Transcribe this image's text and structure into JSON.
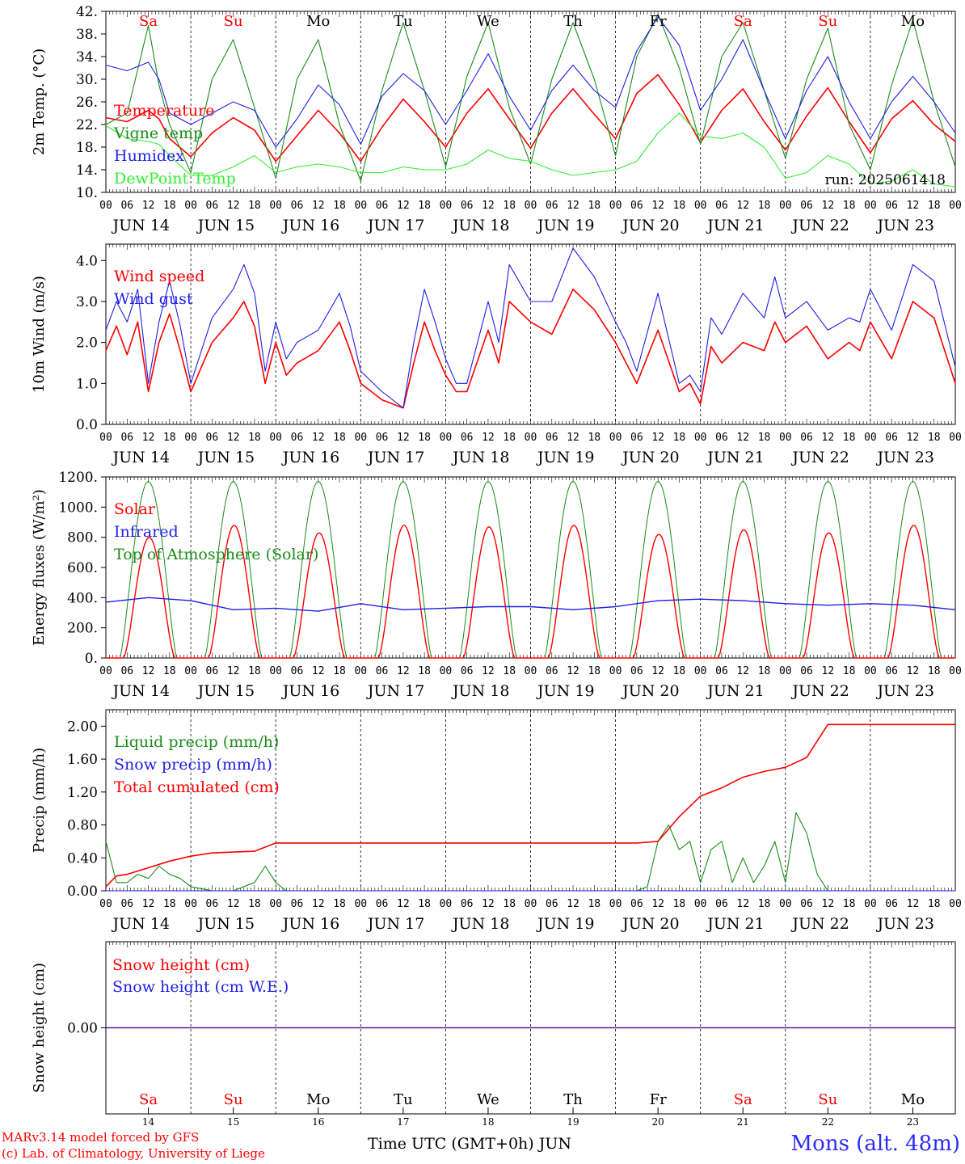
{
  "colors": {
    "red": "#ff0000",
    "green": "#1a8c1a",
    "blue": "#1e1ee6",
    "lightgreen": "#33ee33",
    "black": "#000000"
  },
  "days": [
    {
      "abbr": "Sa",
      "date": "JUN 14",
      "num": "14",
      "weekend": true
    },
    {
      "abbr": "Su",
      "date": "JUN 15",
      "num": "15",
      "weekend": true
    },
    {
      "abbr": "Mo",
      "date": "JUN 16",
      "num": "16",
      "weekend": false
    },
    {
      "abbr": "Tu",
      "date": "JUN 17",
      "num": "17",
      "weekend": false
    },
    {
      "abbr": "We",
      "date": "JUN 18",
      "num": "18",
      "weekend": false
    },
    {
      "abbr": "Th",
      "date": "JUN 19",
      "num": "19",
      "weekend": false
    },
    {
      "abbr": "Fr",
      "date": "JUN 20",
      "num": "20",
      "weekend": false
    },
    {
      "abbr": "Sa",
      "date": "JUN 21",
      "num": "21",
      "weekend": true
    },
    {
      "abbr": "Su",
      "date": "JUN 22",
      "num": "22",
      "weekend": true
    },
    {
      "abbr": "Mo",
      "date": "JUN 23",
      "num": "23",
      "weekend": false
    }
  ],
  "hour_ticks": [
    "00",
    "06",
    "12",
    "18"
  ],
  "hour_ticks_end": "00",
  "footer": {
    "model": "MARv3.14 model forced by GFS",
    "copyright": "(c) Lab. of Climatology, University of Liege",
    "xlabel": "Time UTC (GMT+0h) JUN",
    "station": "Mons (alt. 48m)"
  },
  "chart_data": [
    {
      "type": "line",
      "ylabel": "2m Temp. (°C)",
      "ylim": [
        10,
        42
      ],
      "ytick_labels": [
        "10.",
        "14.",
        "18.",
        "22.",
        "26.",
        "30.",
        "34.",
        "38.",
        "42."
      ],
      "ytick_values": [
        10,
        14,
        18,
        22,
        26,
        30,
        34,
        38,
        42
      ],
      "annotation": "run: 2025061418",
      "x_hours": [
        0,
        6,
        12,
        15,
        18,
        24,
        30,
        36,
        42,
        48,
        54,
        60,
        66,
        72,
        78,
        84,
        90,
        96,
        102,
        108,
        114,
        120,
        126,
        132,
        138,
        144,
        150,
        156,
        162,
        168,
        174,
        180,
        186,
        192,
        198,
        204,
        210,
        216,
        222,
        228,
        234,
        240
      ],
      "series": [
        {
          "name": "Temperature",
          "color": "red",
          "values": [
            23.2,
            22.5,
            24.5,
            23.0,
            19.5,
            16.3,
            20.5,
            23.2,
            21.0,
            15.5,
            20.0,
            24.5,
            20.5,
            15.5,
            21.5,
            26.5,
            22.5,
            18.0,
            24.0,
            28.3,
            23.0,
            17.8,
            24.0,
            28.3,
            23.8,
            19.5,
            27.5,
            30.8,
            25.5,
            18.8,
            24.5,
            28.3,
            22.5,
            17.5,
            23.5,
            28.5,
            22.5,
            17.0,
            23.0,
            26.2,
            22.0,
            19.0
          ]
        },
        {
          "name": "Vigne temp",
          "color": "green",
          "values": [
            22.0,
            24.0,
            39.5,
            29.0,
            22.0,
            13.5,
            30.0,
            37.0,
            25.0,
            12.5,
            30.0,
            37.0,
            22.0,
            12.0,
            28.0,
            40.0,
            28.0,
            14.5,
            30.5,
            40.0,
            25.0,
            15.0,
            30.0,
            40.0,
            30.0,
            16.5,
            34.0,
            41.5,
            32.0,
            18.5,
            34.0,
            40.0,
            28.0,
            16.0,
            30.0,
            39.0,
            22.0,
            14.0,
            29.0,
            40.5,
            26.0,
            14.5
          ]
        },
        {
          "name": "Humidex",
          "color": "blue",
          "values": [
            32.5,
            31.5,
            33.0,
            30.0,
            24.0,
            22.0,
            24.0,
            26.0,
            24.5,
            18.0,
            23.0,
            29.0,
            25.5,
            18.5,
            27.0,
            31.0,
            28.0,
            22.0,
            28.0,
            34.5,
            27.0,
            21.0,
            28.0,
            32.5,
            28.0,
            25.0,
            35.0,
            41.0,
            36.0,
            24.5,
            30.0,
            37.0,
            28.0,
            19.5,
            28.0,
            34.0,
            26.0,
            19.5,
            26.0,
            30.5,
            26.0,
            20.5
          ]
        },
        {
          "name": "DewPoint Temp",
          "color": "lightgreen",
          "values": [
            21.8,
            19.5,
            19.0,
            18.5,
            16.5,
            13.0,
            13.0,
            14.5,
            16.5,
            13.5,
            14.5,
            15.0,
            14.5,
            13.5,
            13.5,
            14.5,
            14.0,
            14.0,
            15.0,
            17.5,
            16.0,
            15.5,
            14.0,
            13.0,
            13.5,
            14.0,
            15.5,
            20.5,
            24.0,
            20.0,
            19.5,
            20.5,
            18.0,
            12.5,
            13.5,
            16.5,
            15.0,
            11.5,
            12.0,
            14.0,
            11.5,
            11.0
          ]
        }
      ]
    },
    {
      "type": "line",
      "ylabel": "10m Wind (m/s)",
      "ylim": [
        0,
        4.4
      ],
      "ytick_labels": [
        "0.0",
        "1.0",
        "2.0",
        "3.0",
        "4.0"
      ],
      "ytick_values": [
        0,
        1,
        2,
        3,
        4
      ],
      "x_hours": [
        0,
        3,
        6,
        9,
        12,
        15,
        18,
        21,
        24,
        30,
        36,
        39,
        42,
        45,
        48,
        51,
        54,
        60,
        66,
        69,
        72,
        78,
        84,
        87,
        90,
        93,
        96,
        99,
        102,
        108,
        111,
        114,
        120,
        126,
        132,
        138,
        144,
        147,
        150,
        156,
        162,
        165,
        168,
        171,
        174,
        180,
        186,
        189,
        192,
        198,
        204,
        210,
        213,
        216,
        222,
        228,
        234,
        240
      ],
      "series": [
        {
          "name": "Wind speed",
          "color": "red",
          "values": [
            1.8,
            2.4,
            1.7,
            2.5,
            0.8,
            2.0,
            2.7,
            1.8,
            0.8,
            2.0,
            2.6,
            3.0,
            2.4,
            1.0,
            2.0,
            1.2,
            1.5,
            1.8,
            2.5,
            1.8,
            1.0,
            0.6,
            0.4,
            1.5,
            2.5,
            1.8,
            1.2,
            0.8,
            0.8,
            2.3,
            1.5,
            3.0,
            2.5,
            2.2,
            3.3,
            2.8,
            2.0,
            1.5,
            1.0,
            2.3,
            0.8,
            1.0,
            0.5,
            1.9,
            1.5,
            2.0,
            1.8,
            2.5,
            2.0,
            2.4,
            1.6,
            2.0,
            1.8,
            2.5,
            1.6,
            3.0,
            2.6,
            1.0
          ]
        },
        {
          "name": "Wind gust",
          "color": "blue",
          "values": [
            2.3,
            3.0,
            2.5,
            3.3,
            1.0,
            2.5,
            3.5,
            2.4,
            1.0,
            2.6,
            3.3,
            3.9,
            3.2,
            1.3,
            2.5,
            1.6,
            2.0,
            2.3,
            3.2,
            2.4,
            1.3,
            0.8,
            0.4,
            2.0,
            3.3,
            2.5,
            1.6,
            1.0,
            1.0,
            3.0,
            2.0,
            3.9,
            3.0,
            3.0,
            4.3,
            3.6,
            2.5,
            2.0,
            1.3,
            3.2,
            1.0,
            1.2,
            0.8,
            2.6,
            2.2,
            3.2,
            2.6,
            3.6,
            2.6,
            3.0,
            2.3,
            2.6,
            2.5,
            3.3,
            2.3,
            3.9,
            3.5,
            1.4
          ]
        }
      ]
    },
    {
      "type": "line",
      "ylabel": "Energy fluxes (W/m²)",
      "ylim": [
        0,
        1200
      ],
      "ytick_labels": [
        "0.",
        "200.",
        "400.",
        "600.",
        "800.",
        "1000.",
        "1200."
      ],
      "ytick_values": [
        0,
        200,
        400,
        600,
        800,
        1000,
        1200
      ],
      "day_peaks": {
        "Solar": [
          800,
          880,
          830,
          880,
          870,
          880,
          820,
          850,
          830,
          880
        ],
        "Top of Atmosphere (Solar)": [
          1170,
          1170,
          1170,
          1170,
          1170,
          1170,
          1170,
          1170,
          1170,
          1170
        ]
      },
      "series": [
        {
          "name": "Solar",
          "color": "red"
        },
        {
          "name": "Infrared",
          "color": "blue",
          "x_hours": [
            0,
            12,
            24,
            36,
            48,
            60,
            72,
            84,
            96,
            108,
            120,
            132,
            144,
            156,
            168,
            180,
            192,
            204,
            216,
            228,
            240
          ],
          "values": [
            370,
            400,
            380,
            320,
            330,
            310,
            360,
            320,
            330,
            340,
            340,
            320,
            340,
            380,
            390,
            380,
            360,
            350,
            360,
            350,
            320
          ]
        },
        {
          "name": "Top of Atmosphere (Solar)",
          "color": "green"
        }
      ]
    },
    {
      "type": "line",
      "ylabel": "Precip (mm/h)",
      "ylim": [
        0,
        2.2
      ],
      "ytick_labels": [
        "0.00",
        "0.40",
        "0.80",
        "1.20",
        "1.60",
        "2.00"
      ],
      "ytick_values": [
        0,
        0.4,
        0.8,
        1.2,
        1.6,
        2.0
      ],
      "series": [
        {
          "name": "Liquid precip (mm/h)",
          "color": "green",
          "x_hours": [
            0,
            3,
            6,
            9,
            12,
            15,
            18,
            21,
            24,
            30,
            36,
            42,
            45,
            48,
            51,
            54,
            150,
            153,
            156,
            159,
            162,
            165,
            168,
            171,
            174,
            177,
            180,
            183,
            186,
            189,
            192,
            195,
            198,
            201,
            204,
            240
          ],
          "values": [
            0.6,
            0.1,
            0.1,
            0.2,
            0.15,
            0.3,
            0.2,
            0.15,
            0.05,
            0.0,
            0.0,
            0.1,
            0.3,
            0.1,
            0.0,
            0.0,
            0.0,
            0.05,
            0.6,
            0.8,
            0.5,
            0.6,
            0.1,
            0.5,
            0.6,
            0.1,
            0.4,
            0.1,
            0.3,
            0.6,
            0.1,
            0.95,
            0.7,
            0.2,
            0.0,
            0.0
          ]
        },
        {
          "name": "Snow precip (mm/h)",
          "color": "blue",
          "x_hours": [
            0,
            240
          ],
          "values": [
            0,
            0
          ]
        },
        {
          "name": "Total cumulated (cm)",
          "color": "red",
          "x_hours": [
            0,
            3,
            6,
            12,
            18,
            24,
            30,
            36,
            42,
            48,
            150,
            156,
            162,
            168,
            174,
            180,
            186,
            192,
            198,
            204,
            240
          ],
          "values": [
            0.05,
            0.18,
            0.2,
            0.28,
            0.36,
            0.42,
            0.46,
            0.47,
            0.48,
            0.58,
            0.58,
            0.6,
            0.9,
            1.15,
            1.25,
            1.38,
            1.45,
            1.5,
            1.62,
            2.02,
            2.02
          ]
        }
      ]
    },
    {
      "type": "line",
      "ylabel": "Snow height (cm)",
      "ylim": [
        -1,
        1
      ],
      "ytick_labels": [
        "0.00"
      ],
      "ytick_values": [
        0
      ],
      "series": [
        {
          "name": "Snow height (cm)",
          "color": "red",
          "x_hours": [
            0,
            240
          ],
          "values": [
            0,
            0
          ]
        },
        {
          "name": "Snow height (cm W.E.)",
          "color": "blue",
          "x_hours": [
            0,
            240
          ],
          "values": [
            0,
            0
          ]
        }
      ]
    }
  ]
}
